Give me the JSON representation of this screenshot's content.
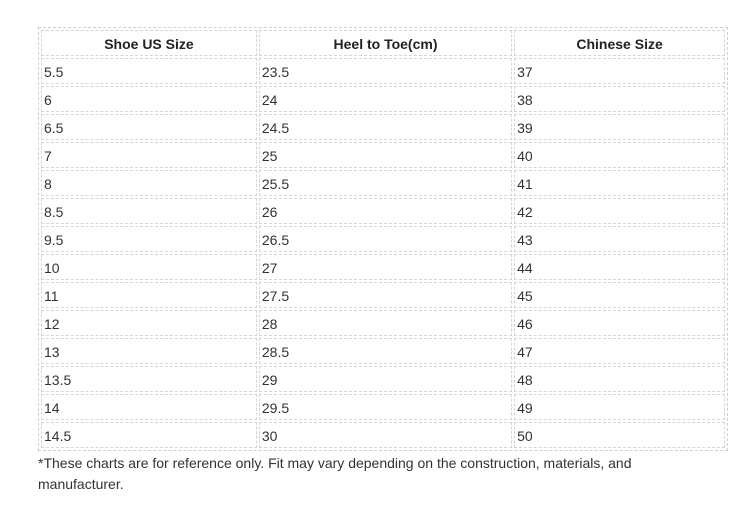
{
  "table": {
    "headers": [
      "Shoe US Size",
      "Heel to Toe(cm)",
      "Chinese Size"
    ],
    "rows": [
      [
        "5.5",
        "23.5",
        "37"
      ],
      [
        "6",
        "24",
        "38"
      ],
      [
        "6.5",
        "24.5",
        "39"
      ],
      [
        "7",
        "25",
        "40"
      ],
      [
        "8",
        "25.5",
        "41"
      ],
      [
        "8.5",
        "26",
        "42"
      ],
      [
        "9.5",
        "26.5",
        "43"
      ],
      [
        "10",
        "27",
        "44"
      ],
      [
        "11",
        "27.5",
        "45"
      ],
      [
        "12",
        "28",
        "46"
      ],
      [
        "13",
        "28.5",
        "47"
      ],
      [
        "13.5",
        "29",
        "48"
      ],
      [
        "14",
        "29.5",
        "49"
      ],
      [
        "14.5",
        "30",
        "50"
      ]
    ]
  },
  "note": "*These charts are for reference only. Fit may vary depending on the construction, materials, and manufacturer."
}
